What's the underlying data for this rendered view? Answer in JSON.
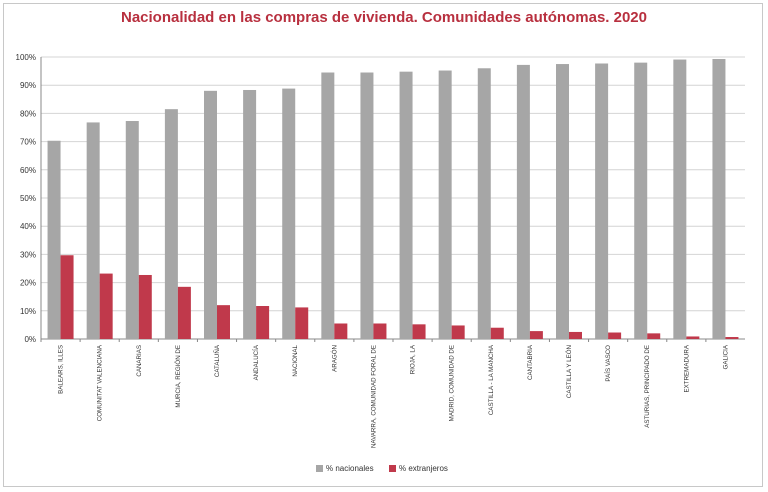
{
  "chart_data": {
    "type": "bar",
    "title": "Nacionalidad  en las compras de vivienda. Comunidades  autónomas.  2020",
    "xlabel": "",
    "ylabel": "",
    "ylim": [
      0,
      1
    ],
    "yticks": [
      "0%",
      "10%",
      "20%",
      "30%",
      "40%",
      "50%",
      "60%",
      "70%",
      "80%",
      "90%",
      "100%"
    ],
    "grid": true,
    "legend_position": "bottom",
    "categories": [
      "BALEARS, ILLES",
      "COMUNITAT VALENCIANA",
      "CANARIAS",
      "MURCIA, REGIÓN DE",
      "CATALUÑA",
      "ANDALUCÍA",
      "NACIONAL",
      "ARAGÓN",
      "NAVARRA, COMUNIDAD FORAL DE",
      "RIOJA, LA",
      "MADRID, COMUNIDAD DE",
      "CASTILLA - LA MANCHA",
      "CANTABRIA",
      "CASTILLA Y LEÓN",
      "PAÍS VASCO",
      "ASTURIAS, PRINCIPADO DE",
      "EXTREMADURA",
      "GALICIA"
    ],
    "series": [
      {
        "name": "% nacionales",
        "color": "#a6a6a6",
        "values": [
          0.703,
          0.768,
          0.773,
          0.815,
          0.88,
          0.883,
          0.888,
          0.945,
          0.945,
          0.948,
          0.952,
          0.96,
          0.972,
          0.975,
          0.977,
          0.98,
          0.991,
          0.993
        ]
      },
      {
        "name": "% extranjeros",
        "color": "#c0394b",
        "values": [
          0.297,
          0.232,
          0.227,
          0.185,
          0.12,
          0.117,
          0.112,
          0.055,
          0.055,
          0.052,
          0.048,
          0.04,
          0.028,
          0.025,
          0.023,
          0.02,
          0.009,
          0.007
        ]
      }
    ]
  }
}
